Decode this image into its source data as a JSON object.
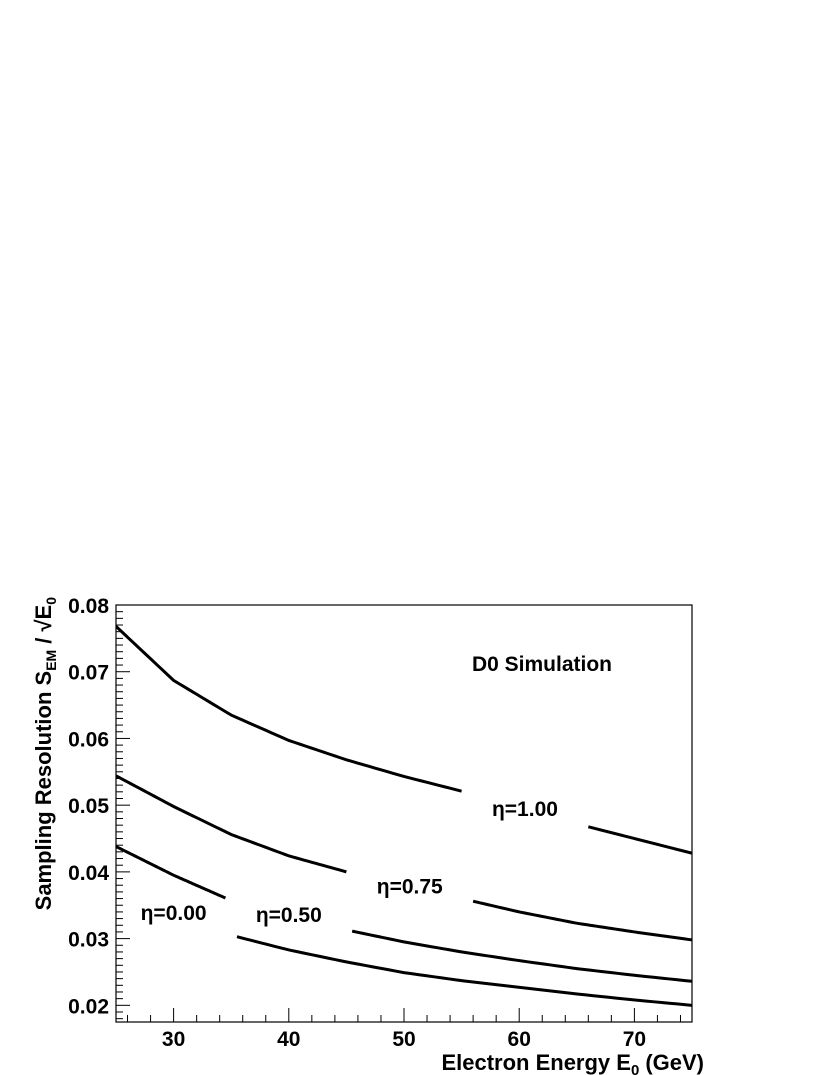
{
  "chart_data": {
    "type": "line",
    "annotation": "D0 Simulation",
    "xlabel": "Electron Energy E",
    "xlabel_sub": "0",
    "xlabel_unit": "(GeV)",
    "ylabel": "Sampling Resolution S",
    "ylabel_sub": "EM",
    "ylabel_tail": "/ √E",
    "ylabel_tail_sub": "0",
    "xlim": [
      25,
      75
    ],
    "ylim": [
      0.0175,
      0.08
    ],
    "xticks": [
      30,
      40,
      50,
      60,
      70
    ],
    "xtick_labels": [
      "30",
      "40",
      "50",
      "60",
      "70"
    ],
    "yticks": [
      0.02,
      0.03,
      0.04,
      0.05,
      0.06,
      0.07,
      0.08
    ],
    "ytick_labels": [
      "0.02",
      "0.03",
      "0.04",
      "0.05",
      "0.06",
      "0.07",
      "0.08"
    ],
    "grid": false,
    "series": [
      {
        "name": "η=1.00",
        "x": [
          25,
          30,
          35,
          40,
          45,
          50,
          55,
          60,
          65,
          70,
          75
        ],
        "y": [
          0.0768,
          0.0687,
          0.0635,
          0.0597,
          0.0568,
          0.0543,
          0.0521,
          0.0497,
          0.0472,
          0.045,
          0.0428
        ],
        "label_x": 60.5
      },
      {
        "name": "η=0.75",
        "x": [
          25,
          30,
          35,
          40,
          45,
          50,
          55,
          60,
          65,
          70,
          75
        ],
        "y": [
          0.0544,
          0.0498,
          0.0456,
          0.0424,
          0.04,
          0.038,
          0.036,
          0.034,
          0.0323,
          0.031,
          0.0298
        ],
        "label_x": 50.5
      },
      {
        "name": "η=0.50",
        "x": [
          25,
          30,
          35,
          40,
          45,
          50,
          55,
          60,
          65,
          70,
          75
        ],
        "y": [
          0.0438,
          0.0395,
          0.0357,
          0.0335,
          0.0313,
          0.0295,
          0.028,
          0.0267,
          0.0255,
          0.0245,
          0.0236
        ],
        "label_x": 40.0
      },
      {
        "name": "η=0.00",
        "x": [
          25,
          30,
          35,
          40,
          45,
          50,
          55,
          60,
          65,
          70,
          75
        ],
        "y": [
          0.0377,
          0.0338,
          0.0305,
          0.0283,
          0.0265,
          0.0249,
          0.0237,
          0.0227,
          0.0217,
          0.0208,
          0.02
        ],
        "label_x": 30.0
      }
    ]
  }
}
